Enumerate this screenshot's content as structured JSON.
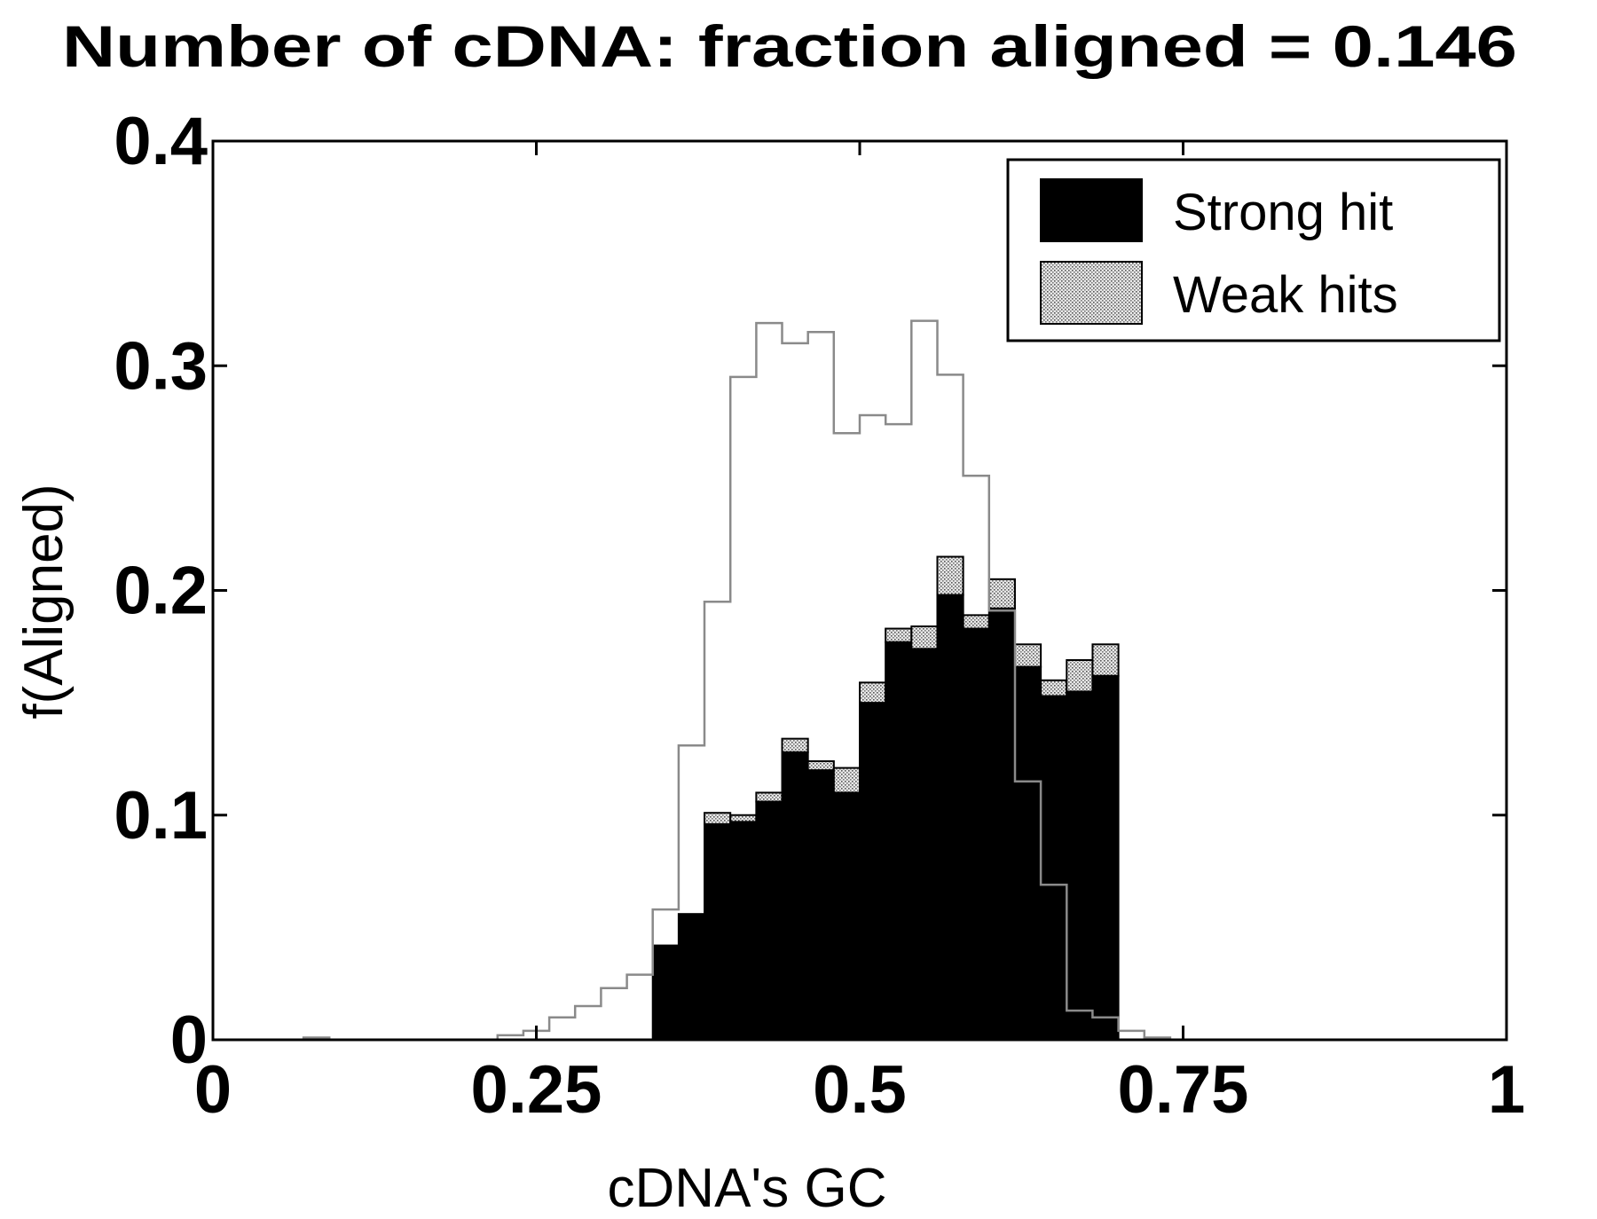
{
  "chart_data": {
    "type": "bar",
    "title": "Number of cDNA: fraction aligned = 0.146",
    "xlabel": "cDNA's GC",
    "ylabel": "f(Aligned)",
    "xlim": [
      0,
      1
    ],
    "ylim": [
      0,
      0.4
    ],
    "xticks": [
      0,
      0.25,
      0.5,
      0.75,
      1
    ],
    "xtick_labels": [
      "0",
      "0.25",
      "0.5",
      "0.75",
      "1"
    ],
    "yticks": [
      0,
      0.1,
      0.2,
      0.3,
      0.4
    ],
    "ytick_labels": [
      "0",
      "0.1",
      "0.2",
      "0.3",
      "0.4"
    ],
    "grid": false,
    "legend_position": "top-right",
    "bin_width": 0.02,
    "bin_starts": [
      0.34,
      0.36,
      0.38,
      0.4,
      0.42,
      0.44,
      0.46,
      0.48,
      0.5,
      0.52,
      0.54,
      0.56,
      0.58,
      0.6,
      0.62,
      0.64,
      0.66,
      0.68
    ],
    "series": [
      {
        "name": "Strong hit",
        "color": "#000000",
        "values": [
          0.042,
          0.056,
          0.096,
          0.097,
          0.106,
          0.128,
          0.12,
          0.11,
          0.15,
          0.177,
          0.174,
          0.198,
          0.183,
          0.192,
          0.166,
          0.153,
          0.155,
          0.162
        ]
      },
      {
        "name": "Weak hits",
        "color": "#cccccc",
        "values": [
          0.0,
          0.0,
          0.005,
          0.003,
          0.004,
          0.006,
          0.004,
          0.011,
          0.009,
          0.006,
          0.01,
          0.017,
          0.006,
          0.013,
          0.01,
          0.007,
          0.014,
          0.014
        ]
      }
    ],
    "outline": {
      "x": [
        0.0,
        0.07,
        0.07,
        0.09,
        0.09,
        0.22,
        0.22,
        0.24,
        0.24,
        0.26,
        0.26,
        0.28,
        0.28,
        0.3,
        0.3,
        0.32,
        0.32,
        0.34,
        0.34,
        0.36,
        0.36,
        0.38,
        0.38,
        0.4,
        0.4,
        0.42,
        0.42,
        0.44,
        0.44,
        0.46,
        0.46,
        0.48,
        0.48,
        0.5,
        0.5,
        0.52,
        0.52,
        0.54,
        0.54,
        0.56,
        0.56,
        0.58,
        0.58,
        0.6,
        0.6,
        0.62,
        0.62,
        0.64,
        0.64,
        0.66,
        0.66,
        0.68,
        0.68,
        0.7,
        0.7,
        0.72,
        0.72,
        0.74,
        0.74,
        0.75,
        0.75,
        1.0
      ],
      "y": [
        0.0,
        0.0,
        0.001,
        0.001,
        0.0,
        0.0,
        0.002,
        0.002,
        0.004,
        0.004,
        0.01,
        0.01,
        0.015,
        0.015,
        0.023,
        0.023,
        0.029,
        0.029,
        0.058,
        0.058,
        0.131,
        0.131,
        0.195,
        0.195,
        0.295,
        0.295,
        0.319,
        0.319,
        0.31,
        0.31,
        0.315,
        0.315,
        0.27,
        0.27,
        0.278,
        0.278,
        0.274,
        0.274,
        0.32,
        0.32,
        0.296,
        0.296,
        0.251,
        0.251,
        0.191,
        0.191,
        0.115,
        0.115,
        0.069,
        0.069,
        0.013,
        0.013,
        0.01,
        0.01,
        0.004,
        0.004,
        0.001,
        0.001,
        0.0,
        0.0,
        0.0,
        0.0
      ]
    }
  }
}
